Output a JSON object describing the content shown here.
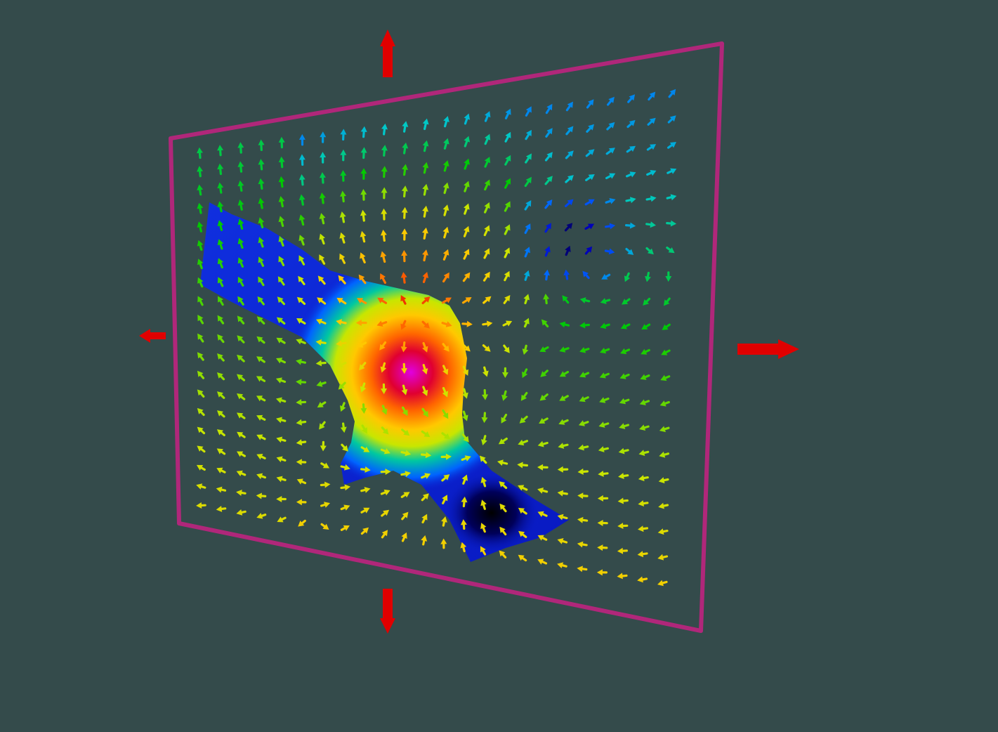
{
  "scene": {
    "background_color": "#344b4b",
    "frame_color": "#b0277a",
    "handle_color": "#e00000",
    "surface_base_color": "#0a1fd0",
    "colormap": [
      "#000000",
      "#0000c8",
      "#0064ff",
      "#00c8c8",
      "#00c800",
      "#c8e600",
      "#ffc800",
      "#ff6400",
      "#e00000",
      "#e000e0"
    ],
    "handles": [
      {
        "name": "top-handle",
        "direction": "up"
      },
      {
        "name": "bottom-handle",
        "direction": "down"
      },
      {
        "name": "left-handle",
        "direction": "left"
      },
      {
        "name": "right-handle",
        "direction": "right"
      }
    ],
    "field": {
      "type": "vector-glyphs",
      "columns": 24,
      "rows": 20,
      "source_point": [
        0.45,
        0.42
      ],
      "sink_point": [
        0.6,
        0.75
      ],
      "vortex_point": [
        0.78,
        0.3
      ]
    }
  }
}
